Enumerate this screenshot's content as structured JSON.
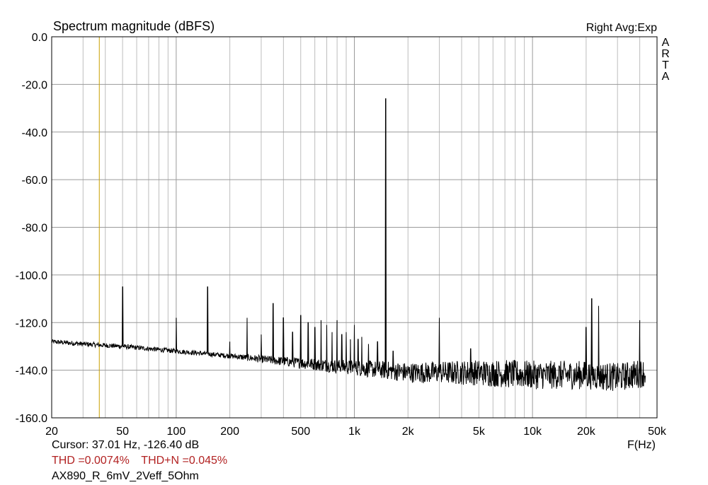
{
  "header": {
    "title": "Spectrum magnitude (dBFS)",
    "mode": "Right Avg:Exp",
    "brand": "ARTA"
  },
  "footer": {
    "cursor": "Cursor: 37.01 Hz, -126.40 dB",
    "thd": "THD =0.0074%",
    "thdn": "THD+N =0.045%",
    "file": "AX890_R_6mV_2Veff_5Ohm",
    "x_unit": "F(Hz)"
  },
  "colors": {
    "trace": "#000000",
    "cursor": "#c8a000",
    "grid": "#bdbdbd",
    "thd_text": "#b22222"
  },
  "chart_data": {
    "type": "line",
    "title": "Spectrum magnitude (dBFS)",
    "xlabel": "F(Hz)",
    "ylabel": "",
    "x_scale": "log",
    "xlim": [
      20,
      50000
    ],
    "ylim": [
      -160,
      0
    ],
    "grid": true,
    "x_ticks": [
      20,
      50,
      100,
      200,
      500,
      1000,
      2000,
      5000,
      10000,
      20000,
      50000
    ],
    "x_tick_labels": [
      "20",
      "50",
      "100",
      "200",
      "500",
      "1k",
      "2k",
      "5k",
      "10k",
      "20k",
      "50k"
    ],
    "y_ticks": [
      0,
      -20,
      -40,
      -60,
      -80,
      -100,
      -120,
      -140,
      -160
    ],
    "y_tick_labels": [
      "0.0",
      "-20.0",
      "-40.0",
      "-60.0",
      "-80.0",
      "-100.0",
      "-120.0",
      "-140.0",
      "-160.0"
    ],
    "cursor_x": 37.01,
    "series": [
      {
        "noise_floor": [
          [
            20,
            -128
          ],
          [
            30,
            -129
          ],
          [
            50,
            -130
          ],
          [
            100,
            -132
          ],
          [
            200,
            -134
          ],
          [
            500,
            -137
          ],
          [
            1000,
            -139
          ],
          [
            1500,
            -140
          ],
          [
            2000,
            -141
          ],
          [
            5000,
            -141
          ],
          [
            10000,
            -142
          ],
          [
            20000,
            -142
          ],
          [
            30000,
            -143
          ],
          [
            43000,
            -141
          ]
        ],
        "peaks": [
          {
            "x": 50,
            "y": -105
          },
          {
            "x": 100,
            "y": -118
          },
          {
            "x": 150,
            "y": -105
          },
          {
            "x": 200,
            "y": -128
          },
          {
            "x": 250,
            "y": -118
          },
          {
            "x": 300,
            "y": -125
          },
          {
            "x": 350,
            "y": -112
          },
          {
            "x": 400,
            "y": -118
          },
          {
            "x": 450,
            "y": -124
          },
          {
            "x": 500,
            "y": -117
          },
          {
            "x": 550,
            "y": -120
          },
          {
            "x": 600,
            "y": -122
          },
          {
            "x": 650,
            "y": -119
          },
          {
            "x": 700,
            "y": -121
          },
          {
            "x": 750,
            "y": -124
          },
          {
            "x": 800,
            "y": -119
          },
          {
            "x": 850,
            "y": -125
          },
          {
            "x": 900,
            "y": -124
          },
          {
            "x": 950,
            "y": -127
          },
          {
            "x": 1000,
            "y": -121
          },
          {
            "x": 1050,
            "y": -127
          },
          {
            "x": 1100,
            "y": -126
          },
          {
            "x": 1200,
            "y": -129
          },
          {
            "x": 1350,
            "y": -128
          },
          {
            "x": 1500,
            "y": -26
          },
          {
            "x": 1650,
            "y": -132
          },
          {
            "x": 3000,
            "y": -118
          },
          {
            "x": 4500,
            "y": -131
          },
          {
            "x": 20000,
            "y": -122
          },
          {
            "x": 21500,
            "y": -110
          },
          {
            "x": 23500,
            "y": -113
          },
          {
            "x": 40000,
            "y": -119
          }
        ]
      }
    ]
  }
}
